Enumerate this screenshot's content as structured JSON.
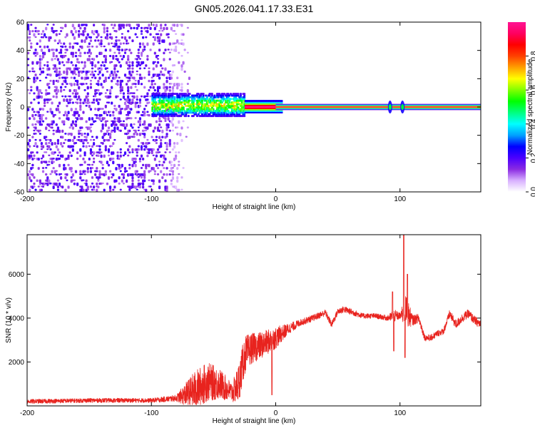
{
  "title": "GN05.2026.041.17.33.E31",
  "chart_data": [
    {
      "type": "heatmap",
      "xlabel": "Height of straight line (km)",
      "ylabel": "Frequency (Hz)",
      "xlim": [
        -200,
        165
      ],
      "ylim": [
        -60,
        60
      ],
      "x_ticks": [
        -200,
        -100,
        0,
        100
      ],
      "y_ticks": [
        -60,
        -40,
        -20,
        0,
        20,
        40,
        60
      ],
      "colorbar": {
        "label": "Normalized spectral amplitude",
        "range": [
          0,
          1
        ],
        "ticks": [
          0,
          0.2,
          0.4,
          0.6,
          0.8
        ],
        "colors": [
          "#ffffff",
          "#d8b0ff",
          "#8a2be2",
          "#4b00ff",
          "#0000ff",
          "#00a0ff",
          "#00ffff",
          "#00ff80",
          "#00ff00",
          "#80ff00",
          "#ffff00",
          "#ffa000",
          "#ff4000",
          "#ff0000",
          "#ff0060",
          "#ff1493"
        ]
      },
      "features": {
        "noise_region_x": [
          -200,
          -75
        ],
        "noise_column_x": [
          -48,
          -35
        ],
        "transition_x": [
          -100,
          -25
        ],
        "steady_line_x": [
          0,
          165
        ],
        "steady_line_frequency": 0,
        "spikes_x": [
          92,
          102
        ]
      }
    },
    {
      "type": "line",
      "xlabel": "Height of straight line (km)",
      "ylabel": "SNR (10 * v/v)",
      "xlim": [
        -200,
        165
      ],
      "ylim": [
        0,
        7800
      ],
      "x_ticks": [
        -200,
        -100,
        0,
        100
      ],
      "y_ticks": [
        2000,
        4000,
        6000
      ],
      "color": "#e8231e",
      "envelope": {
        "x": [
          -200,
          -150,
          -100,
          -80,
          -65,
          -55,
          -45,
          -35,
          -30,
          -25,
          -20,
          -10,
          0,
          10,
          20,
          30,
          40,
          45,
          50,
          55,
          60,
          70,
          80,
          90,
          95,
          100,
          105,
          110,
          115,
          120,
          125,
          130,
          135,
          140,
          145,
          150,
          155,
          160,
          165
        ],
        "y": [
          200,
          250,
          250,
          350,
          700,
          1100,
          1000,
          600,
          1000,
          2300,
          2600,
          2800,
          3100,
          3500,
          3800,
          4000,
          4250,
          3700,
          4300,
          4400,
          4300,
          4100,
          4100,
          4000,
          4100,
          4100,
          4300,
          3900,
          4000,
          3100,
          3100,
          3300,
          3400,
          4200,
          3700,
          4000,
          4200,
          3900,
          3700
        ],
        "noise": [
          100,
          100,
          100,
          150,
          900,
          900,
          700,
          450,
          900,
          900,
          700,
          600,
          500,
          250,
          150,
          150,
          150,
          150,
          150,
          150,
          150,
          120,
          120,
          120,
          300,
          150,
          800,
          250,
          200,
          150,
          150,
          150,
          150,
          200,
          200,
          200,
          200,
          200,
          200
        ]
      },
      "spikes": [
        {
          "x": 94,
          "y": 5200
        },
        {
          "x": 95,
          "y": 2500
        },
        {
          "x": 103,
          "y": 7900
        },
        {
          "x": 104,
          "y": 2200
        },
        {
          "x": 106,
          "y": 6000
        },
        {
          "x": -3,
          "y": 500
        }
      ]
    }
  ]
}
